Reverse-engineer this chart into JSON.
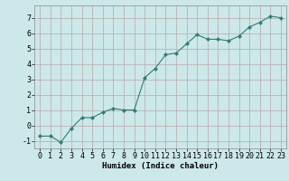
{
  "x": [
    0,
    1,
    2,
    3,
    4,
    5,
    6,
    7,
    8,
    9,
    10,
    11,
    12,
    13,
    14,
    15,
    16,
    17,
    18,
    19,
    20,
    21,
    22,
    23
  ],
  "y": [
    -0.7,
    -0.7,
    -1.1,
    -0.2,
    0.5,
    0.5,
    0.85,
    1.1,
    1.0,
    1.0,
    3.1,
    3.7,
    4.6,
    4.7,
    5.3,
    5.9,
    5.6,
    5.6,
    5.5,
    5.8,
    6.4,
    6.7,
    7.1,
    7.0
  ],
  "line_color": "#2d7f6e",
  "marker": "D",
  "marker_size": 2.2,
  "bg_color": "#cce8e8",
  "grid_color": "#b8a8a8",
  "xlabel": "Humidex (Indice chaleur)",
  "xlim": [
    -0.5,
    23.5
  ],
  "ylim": [
    -1.5,
    7.8
  ],
  "yticks": [
    -1,
    0,
    1,
    2,
    3,
    4,
    5,
    6,
    7
  ],
  "xticks": [
    0,
    1,
    2,
    3,
    4,
    5,
    6,
    7,
    8,
    9,
    10,
    11,
    12,
    13,
    14,
    15,
    16,
    17,
    18,
    19,
    20,
    21,
    22,
    23
  ],
  "xlabel_fontsize": 6.5,
  "tick_fontsize": 6.0
}
